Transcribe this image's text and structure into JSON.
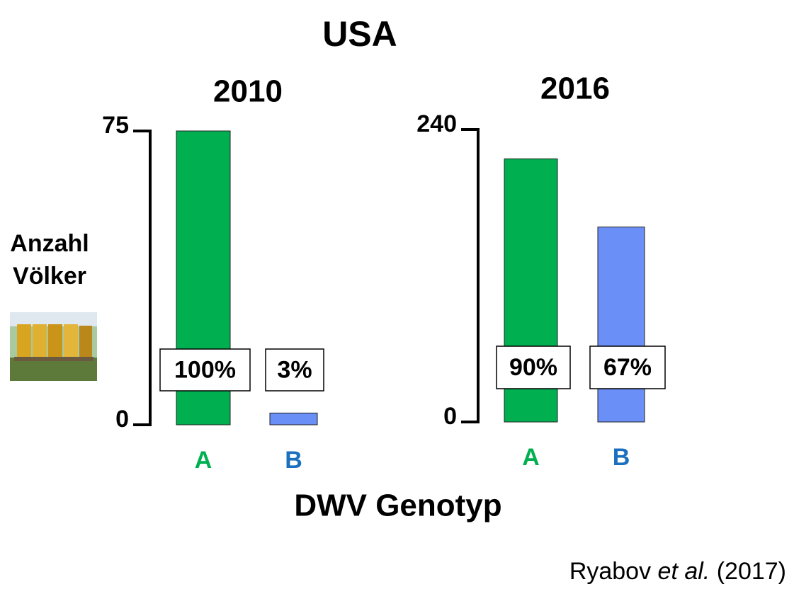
{
  "title": "USA",
  "xlabel": "DWV Genotyp",
  "ylabel": [
    "Anzahl",
    "Völker"
  ],
  "source": [
    "Ryabov ",
    "et al.",
    " (2017)"
  ],
  "chart_data": [
    {
      "type": "bar",
      "title": "2010",
      "categories": [
        "A",
        "B"
      ],
      "values": [
        75,
        3
      ],
      "annotations": [
        "100%",
        "3%"
      ],
      "colors": [
        "#00b050",
        "#6a8ff7"
      ],
      "category_colors": [
        "#00b050",
        "#1a6fbf"
      ],
      "ylim": [
        0,
        75
      ],
      "yticks": [
        0,
        75
      ]
    },
    {
      "type": "bar",
      "title": "2016",
      "categories": [
        "A",
        "B"
      ],
      "values": [
        216,
        160
      ],
      "annotations": [
        "90%",
        "67%"
      ],
      "colors": [
        "#00b050",
        "#6a8ff7"
      ],
      "category_colors": [
        "#00b050",
        "#1a6fbf"
      ],
      "ylim": [
        0,
        240
      ],
      "yticks": [
        0,
        240
      ]
    }
  ]
}
